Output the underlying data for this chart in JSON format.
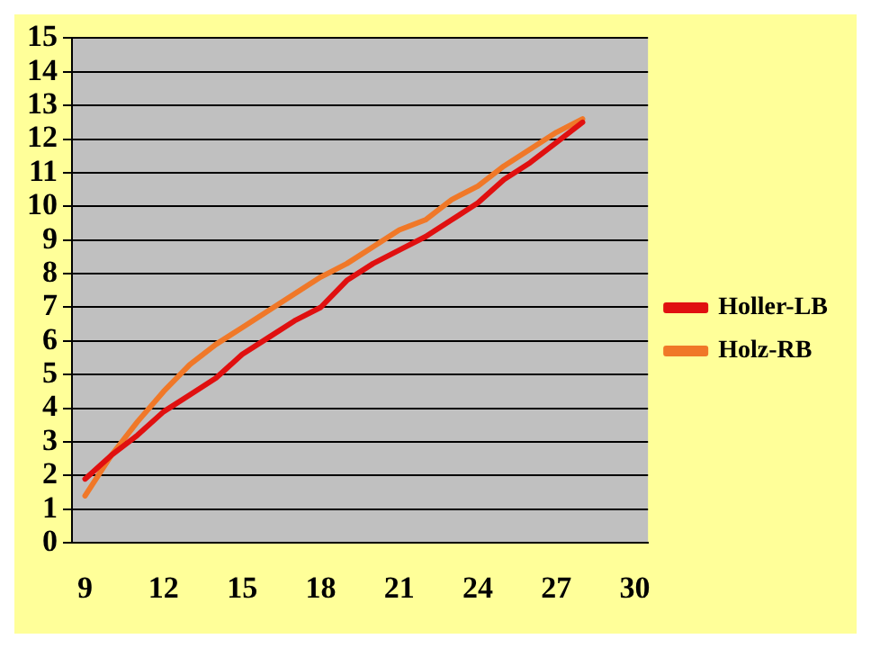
{
  "chart_data": {
    "type": "line",
    "x": [
      9,
      10,
      11,
      12,
      13,
      14,
      15,
      16,
      17,
      18,
      19,
      20,
      21,
      22,
      23,
      24,
      25,
      26,
      27,
      28
    ],
    "series": [
      {
        "name": "Holler-LB",
        "color": "#e01010",
        "values": [
          1.9,
          2.6,
          3.2,
          3.9,
          4.4,
          4.9,
          5.6,
          6.1,
          6.6,
          7.0,
          7.8,
          8.3,
          8.7,
          9.1,
          9.6,
          10.1,
          10.8,
          11.3,
          11.9,
          12.5
        ]
      },
      {
        "name": "Holz-RB",
        "color": "#f07828",
        "values": [
          1.4,
          2.6,
          3.6,
          4.5,
          5.3,
          5.9,
          6.4,
          6.9,
          7.4,
          7.9,
          8.3,
          8.8,
          9.3,
          9.6,
          10.2,
          10.6,
          11.2,
          11.7,
          12.2,
          12.6
        ]
      }
    ],
    "xlim": [
      8.5,
      30.5
    ],
    "xticks": [
      9,
      12,
      15,
      18,
      21,
      24,
      27,
      30
    ],
    "ylim": [
      0,
      15
    ],
    "yticks": [
      0,
      1,
      2,
      3,
      4,
      5,
      6,
      7,
      8,
      9,
      10,
      11,
      12,
      13,
      14,
      15
    ],
    "grid": "y",
    "legend": "right",
    "marker": "none",
    "line_style": "solid"
  }
}
